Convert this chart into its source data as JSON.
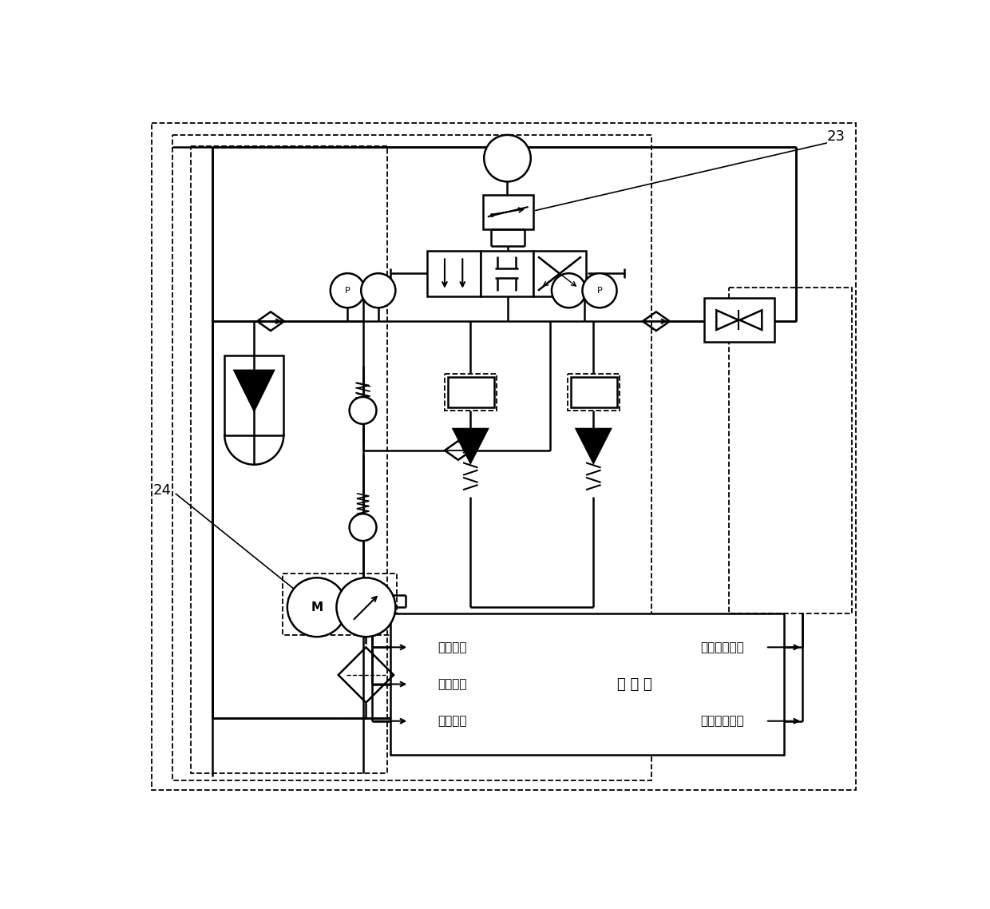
{
  "bg_color": "#ffffff",
  "lc": "#000000",
  "lw": 1.8,
  "dlw": 1.3,
  "label_23": "23",
  "label_24": "24",
  "ctrl_labels_left": [
    "输入压力",
    "活塞位移",
    "输出压力"
  ],
  "ctrl_label_center": "控 制 器",
  "ctrl_labels_right": [
    "卸荷压力信号",
    "工作压力信号"
  ],
  "figsize": [
    12.4,
    11.38
  ],
  "dpi": 100
}
